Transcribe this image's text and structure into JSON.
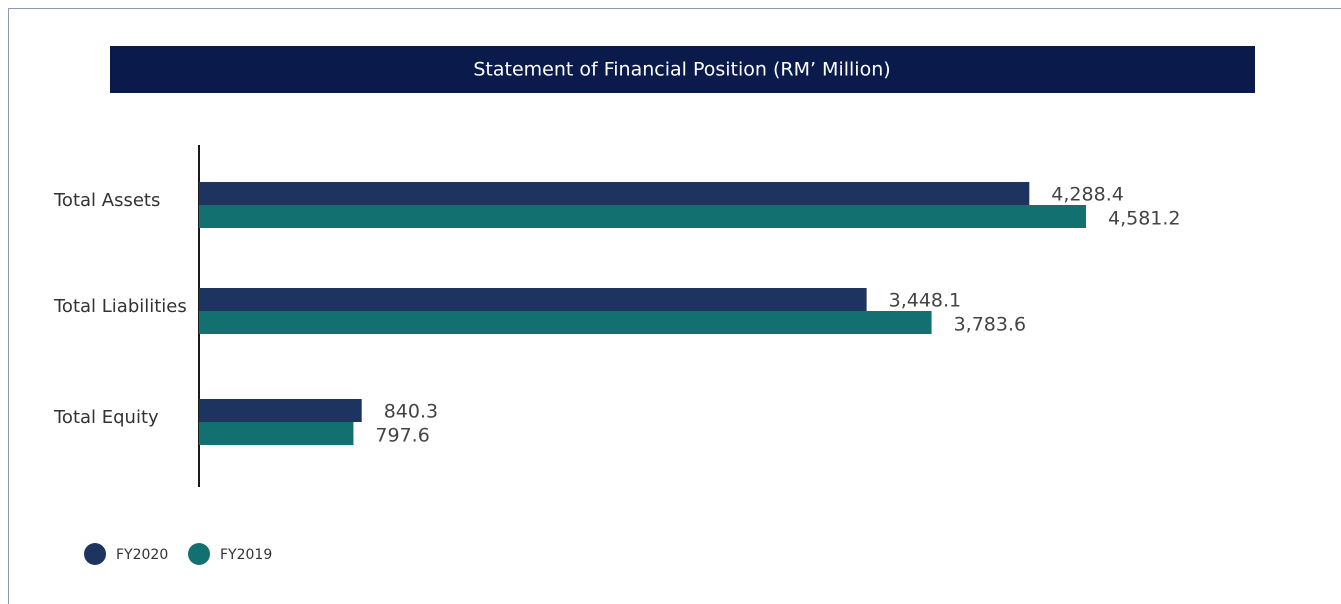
{
  "chart_data": {
    "type": "bar",
    "orientation": "horizontal",
    "title": "Statement of Financial Position (RM’ Million)",
    "categories": [
      "Total Assets",
      "Total Liabilities",
      "Total Equity"
    ],
    "series": [
      {
        "name": "FY2020",
        "color": "#1d3461",
        "values": [
          4288.4,
          3448.1,
          840.3
        ],
        "value_labels": [
          "4,288.4",
          "3,448.1",
          "840.3"
        ]
      },
      {
        "name": "FY2019",
        "color": "#127070",
        "values": [
          4581.2,
          3783.6,
          797.6
        ],
        "value_labels": [
          "4,581.2",
          "3,783.6",
          "797.6"
        ]
      }
    ],
    "legend": "bottom-left"
  }
}
